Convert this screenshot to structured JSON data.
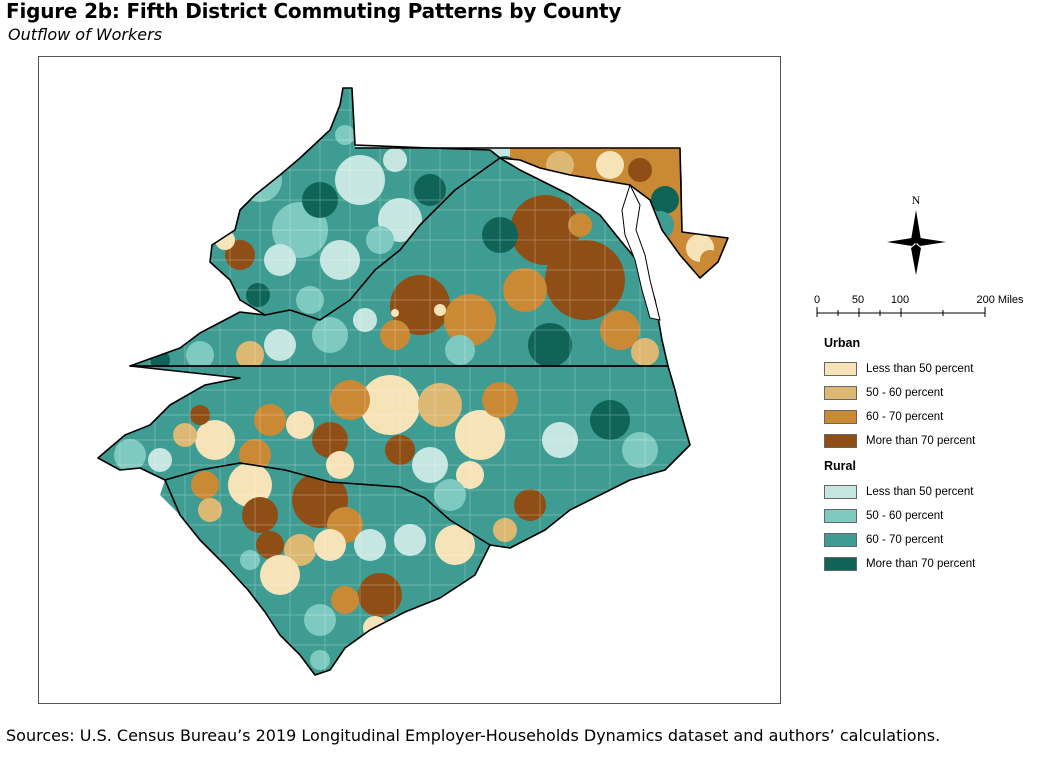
{
  "figure": {
    "title": "Figure 2b: Fifth District Commuting Patterns by County",
    "subtitle": "Outflow of Workers",
    "source": "Sources: U.S. Census Bureau’s 2019 Longitudinal Employer-Households Dynamics dataset and authors’ calculations."
  },
  "north_arrow": {
    "label": "N"
  },
  "scale_bar": {
    "ticks": [
      "0",
      "50",
      "100",
      "200 Miles"
    ]
  },
  "legend": {
    "urban": {
      "heading": "Urban",
      "items": [
        {
          "label": "Less than 50 percent",
          "color": "#f6e3b8"
        },
        {
          "label": "50 - 60 percent",
          "color": "#dcb873"
        },
        {
          "label": "60 - 70 percent",
          "color": "#c98935"
        },
        {
          "label": "More than 70 percent",
          "color": "#8f4e15"
        }
      ]
    },
    "rural": {
      "heading": "Rural",
      "items": [
        {
          "label": "Less than 50 percent",
          "color": "#c6e6e1"
        },
        {
          "label": "50 - 60 percent",
          "color": "#7fcac0"
        },
        {
          "label": "60 - 70 percent",
          "color": "#3e9c92"
        },
        {
          "label": "More than 70 percent",
          "color": "#0f6457"
        }
      ]
    }
  },
  "colors": {
    "frame": "#555555",
    "state_border": "#000000",
    "county_border": "#555555"
  }
}
